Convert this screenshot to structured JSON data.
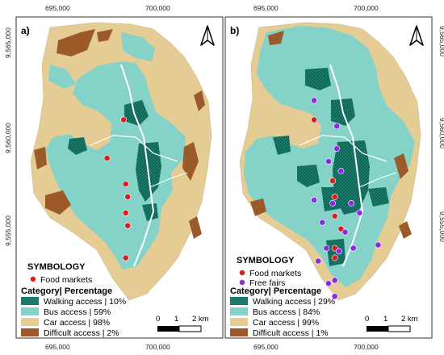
{
  "colors": {
    "walking": "#1b7a6a",
    "bus": "#85d3c8",
    "car": "#e5cc94",
    "difficult": "#9c5a2a",
    "food_markets": "#d81e1e",
    "free_fairs": "#8a2be2",
    "road": "#ffffff"
  },
  "axes": {
    "x_ticks": [
      "695,000",
      "700,000"
    ],
    "y_ticks": [
      "9,565,000",
      "9,560,000",
      "9,555,000"
    ]
  },
  "panels": [
    {
      "label": "a)",
      "symbology_title": "SYMBOLOGY",
      "point_legend": [
        {
          "label": "Food markets",
          "color_key": "food_markets"
        }
      ],
      "category_title": "Category| Percentage",
      "categories": [
        {
          "label": "Walking access | 10%",
          "color_key": "walking"
        },
        {
          "label": "Bus access | 59%",
          "color_key": "bus"
        },
        {
          "label": "Car access | 98%",
          "color_key": "car"
        },
        {
          "label": "Difficult access | 2%",
          "color_key": "difficult"
        }
      ],
      "scale": {
        "labels": [
          "0",
          "1",
          "2 km"
        ]
      },
      "north_icon": "north-arrow-icon",
      "points": {
        "food_markets": [
          [
            0.52,
            0.32
          ],
          [
            0.44,
            0.44
          ],
          [
            0.53,
            0.52
          ],
          [
            0.54,
            0.56
          ],
          [
            0.53,
            0.61
          ],
          [
            0.54,
            0.65
          ],
          [
            0.53,
            0.75
          ]
        ]
      }
    },
    {
      "label": "b)",
      "symbology_title": "SYMBOLOGY",
      "point_legend": [
        {
          "label": "Food markets",
          "color_key": "food_markets"
        },
        {
          "label": "Free fairs",
          "color_key": "free_fairs"
        }
      ],
      "category_title": "Category| Percentage",
      "categories": [
        {
          "label": "Walking access | 29%",
          "color_key": "walking"
        },
        {
          "label": "Bus access | 84%",
          "color_key": "bus"
        },
        {
          "label": "Car access | 99%",
          "color_key": "car"
        },
        {
          "label": "Difficult access | 1%",
          "color_key": "difficult"
        }
      ],
      "scale": {
        "labels": [
          "0",
          "1",
          "2 km"
        ]
      },
      "north_icon": "north-arrow-icon",
      "points": {
        "food_markets": [
          [
            0.43,
            0.32
          ],
          [
            0.52,
            0.51
          ],
          [
            0.53,
            0.56
          ],
          [
            0.53,
            0.62
          ],
          [
            0.56,
            0.66
          ],
          [
            0.53,
            0.72
          ],
          [
            0.53,
            0.75
          ]
        ],
        "free_fairs": [
          [
            0.43,
            0.26
          ],
          [
            0.54,
            0.34
          ],
          [
            0.54,
            0.41
          ],
          [
            0.5,
            0.45
          ],
          [
            0.56,
            0.48
          ],
          [
            0.43,
            0.57
          ],
          [
            0.52,
            0.58
          ],
          [
            0.61,
            0.58
          ],
          [
            0.65,
            0.61
          ],
          [
            0.47,
            0.64
          ],
          [
            0.58,
            0.67
          ],
          [
            0.49,
            0.72
          ],
          [
            0.55,
            0.73
          ],
          [
            0.62,
            0.72
          ],
          [
            0.74,
            0.71
          ],
          [
            0.45,
            0.76
          ],
          [
            0.53,
            0.82
          ],
          [
            0.5,
            0.83
          ],
          [
            0.53,
            0.87
          ]
        ]
      }
    }
  ]
}
